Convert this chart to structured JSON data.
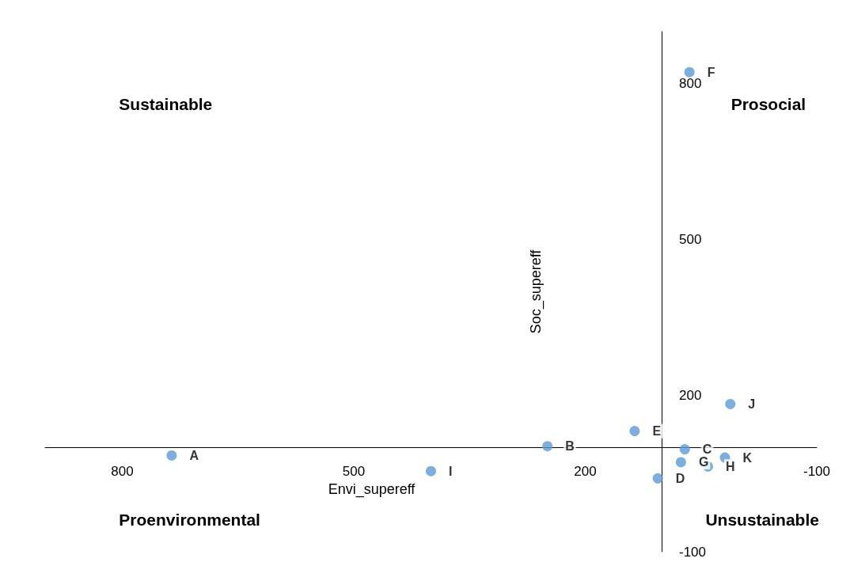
{
  "chart_data": {
    "type": "scatter",
    "xlabel": "Envi_supereff",
    "ylabel": "Soc_supereff",
    "x": [
      736,
      249,
      71,
      106,
      136,
      65,
      76,
      41,
      400,
      12,
      19
    ],
    "series": [
      {
        "color": "#5b9bd5",
        "values": [
          85,
          103,
          97,
          41,
          132,
          822,
          72,
          64,
          55,
          184,
          81
        ],
        "value_labels": [
          "A",
          "B",
          "C",
          "D",
          "E",
          "F",
          "G",
          "H",
          "I",
          "J",
          "K"
        ]
      }
    ],
    "xlim": [
      900,
      -100
    ],
    "xticks": [
      800,
      500,
      200,
      -100
    ],
    "ylim": [
      -100,
      900
    ],
    "yticks": [
      -100,
      200,
      500,
      800
    ],
    "annotations": [
      "Sustainable",
      "Prosocial",
      "Proenvironmental",
      "Unsustainable"
    ],
    "marker": "circle",
    "grid": false
  }
}
